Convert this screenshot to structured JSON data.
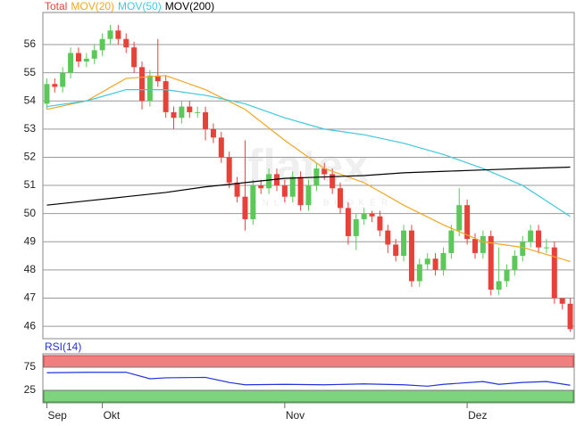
{
  "chart_data": {
    "type": "candlestick",
    "legend": [
      {
        "name": "Total",
        "color": "#e8413a"
      },
      {
        "name": "MOV(20)",
        "color": "#f5a623"
      },
      {
        "name": "MOV(50)",
        "color": "#3ec8e0"
      },
      {
        "name": "MOV(200)",
        "color": "#000000"
      }
    ],
    "watermark": "flatex",
    "watermark_sub": "ONLINE BROKER",
    "xlim": [
      -0.5,
      66.5
    ],
    "xticks": [
      {
        "value": 0,
        "label": "Sep"
      },
      {
        "value": 7,
        "label": "Okt"
      },
      {
        "value": 30,
        "label": "Nov"
      },
      {
        "value": 53,
        "label": "Dez"
      }
    ],
    "ylim": [
      45.56,
      57.14
    ],
    "yticks": [
      46,
      47,
      48,
      49,
      50,
      51,
      52,
      53,
      54,
      55,
      56
    ],
    "grid": true,
    "up_color": "#5cc85a",
    "down_color": "#e8413a",
    "open": [
      53.9,
      54.6,
      54.5,
      55.0,
      55.7,
      55.4,
      55.5,
      55.8,
      56.2,
      56.5,
      56.2,
      55.9,
      55.2,
      54.0,
      54.9,
      54.7,
      53.6,
      53.4,
      53.8,
      53.6,
      53.6,
      53.0,
      52.7,
      52.0,
      51.1,
      50.6,
      49.8,
      51.0,
      50.9,
      51.4,
      51.0,
      50.6,
      51.3,
      50.3,
      51.0,
      51.6,
      51.4,
      50.9,
      50.2,
      49.2,
      49.8,
      50.0,
      49.9,
      49.4,
      48.9,
      48.5,
      49.4,
      47.6,
      48.2,
      48.4,
      48.0,
      48.6,
      49.4,
      50.3,
      49.1,
      48.6,
      49.2,
      47.3,
      47.6,
      48.0,
      48.5,
      49.0,
      49.4,
      48.8,
      48.8,
      47.0,
      46.8
    ],
    "high": [
      54.8,
      54.8,
      55.2,
      55.9,
      55.9,
      55.7,
      56.0,
      56.4,
      56.7,
      56.7,
      56.4,
      56.1,
      55.4,
      55.1,
      56.2,
      54.9,
      53.8,
      54.0,
      54.0,
      53.8,
      53.8,
      53.2,
      52.9,
      52.2,
      51.3,
      52.6,
      51.2,
      51.2,
      51.6,
      51.6,
      51.2,
      51.5,
      51.5,
      51.2,
      51.8,
      51.8,
      51.6,
      51.1,
      50.4,
      50.0,
      50.2,
      50.1,
      50.1,
      49.6,
      49.1,
      49.6,
      49.6,
      48.4,
      48.6,
      48.6,
      48.8,
      49.6,
      50.9,
      50.5,
      49.3,
      49.4,
      49.4,
      48.8,
      48.2,
      48.7,
      49.2,
      49.6,
      49.6,
      49.1,
      49.0,
      47.0,
      47.0
    ],
    "low": [
      53.7,
      54.3,
      54.3,
      54.8,
      55.2,
      55.2,
      55.3,
      55.6,
      56.0,
      56.0,
      55.7,
      55.0,
      53.7,
      53.8,
      54.5,
      53.4,
      53.0,
      53.2,
      53.4,
      53.4,
      52.6,
      52.5,
      51.8,
      50.9,
      50.4,
      49.4,
      49.6,
      50.7,
      50.7,
      50.8,
      50.4,
      50.4,
      50.1,
      50.1,
      50.8,
      51.2,
      50.7,
      50.0,
      48.9,
      48.7,
      49.6,
      49.7,
      49.2,
      48.6,
      48.3,
      48.3,
      47.4,
      47.4,
      48.0,
      47.8,
      47.8,
      48.4,
      49.2,
      48.9,
      48.4,
      48.4,
      47.1,
      47.1,
      47.4,
      47.8,
      48.3,
      48.8,
      48.6,
      48.6,
      46.8,
      46.6,
      45.8
    ],
    "close": [
      54.6,
      54.5,
      55.0,
      55.7,
      55.4,
      55.5,
      55.8,
      56.2,
      56.5,
      56.2,
      55.9,
      55.2,
      54.0,
      54.9,
      54.7,
      53.6,
      53.4,
      53.8,
      53.6,
      53.6,
      53.0,
      52.7,
      52.0,
      51.1,
      50.6,
      49.8,
      51.0,
      50.9,
      51.4,
      51.0,
      50.6,
      51.3,
      50.3,
      51.0,
      51.6,
      51.4,
      50.9,
      50.2,
      49.2,
      49.8,
      50.0,
      49.9,
      49.4,
      48.9,
      48.5,
      49.4,
      47.6,
      48.2,
      48.4,
      48.0,
      48.6,
      49.4,
      50.3,
      49.1,
      48.6,
      49.2,
      47.3,
      47.6,
      48.0,
      48.5,
      49.0,
      49.4,
      48.8,
      48.8,
      47.0,
      46.8,
      45.9
    ],
    "series": [
      {
        "name": "MOV(20)",
        "color": "#f5a623",
        "x": [
          0,
          5,
          10,
          15,
          20,
          25,
          30,
          35,
          40,
          45,
          50,
          55,
          60,
          66
        ],
        "values": [
          53.7,
          54.0,
          54.8,
          54.9,
          54.4,
          53.7,
          52.6,
          51.6,
          51.1,
          50.3,
          49.6,
          49.0,
          48.8,
          48.3
        ]
      },
      {
        "name": "MOV(50)",
        "color": "#3ec8e0",
        "x": [
          0,
          5,
          10,
          15,
          20,
          25,
          30,
          35,
          40,
          45,
          50,
          55,
          60,
          66
        ],
        "values": [
          53.8,
          54.0,
          54.4,
          54.4,
          54.2,
          53.9,
          53.4,
          53.0,
          52.8,
          52.5,
          52.1,
          51.6,
          51.0,
          49.9
        ]
      },
      {
        "name": "MOV(200)",
        "color": "#000000",
        "x": [
          0,
          5,
          10,
          15,
          20,
          25,
          30,
          35,
          40,
          45,
          50,
          55,
          60,
          66
        ],
        "values": [
          50.3,
          50.45,
          50.6,
          50.75,
          50.95,
          51.1,
          51.25,
          51.3,
          51.35,
          51.45,
          51.5,
          51.55,
          51.6,
          51.65
        ]
      }
    ],
    "rsi": {
      "label": "RSI(14)",
      "color": "#2233dd",
      "ylim": [
        0,
        100
      ],
      "yticks": [
        25,
        75
      ],
      "upper_band": [
        75,
        100
      ],
      "lower_band": [
        0,
        25
      ],
      "x": [
        0,
        5,
        10,
        13,
        15,
        20,
        23,
        25,
        30,
        35,
        40,
        45,
        48,
        50,
        55,
        57,
        60,
        63,
        66
      ],
      "values": [
        63,
        64,
        64,
        50,
        52,
        53,
        42,
        37,
        38,
        37,
        39,
        37,
        34,
        38,
        44,
        38,
        42,
        44,
        36
      ]
    }
  }
}
